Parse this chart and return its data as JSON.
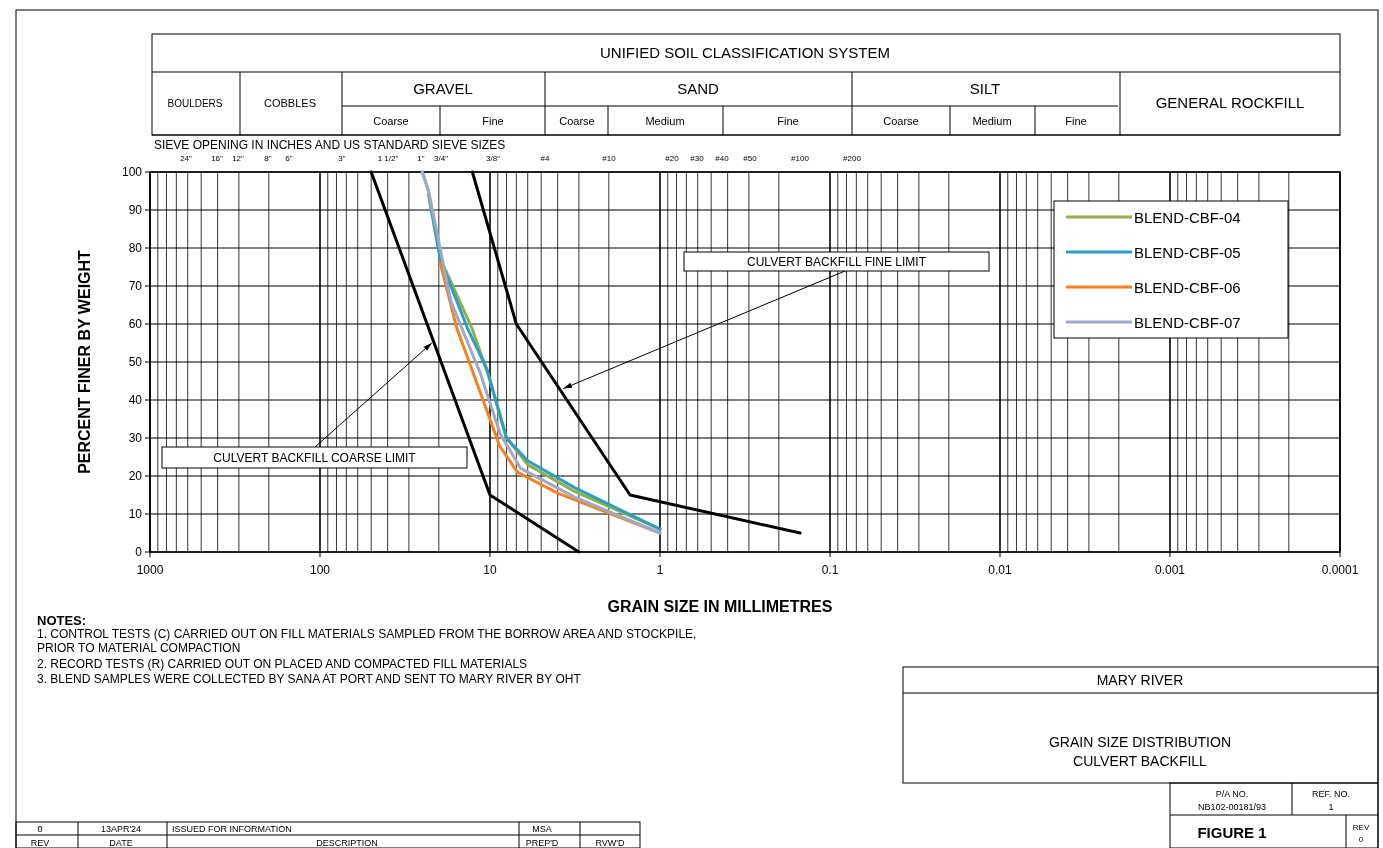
{
  "chart_data": {
    "type": "line",
    "xlabel": "GRAIN SIZE IN MILLIMETRES",
    "ylabel": "PERCENT FINER BY WEIGHT",
    "log": "x",
    "grid": true,
    "legend": "top right",
    "marker": "none",
    "line_style": "solid",
    "xlim": [
      1000,
      0.0001
    ],
    "xticks": [
      1000,
      100,
      10,
      1,
      0.1,
      0.01,
      0.001,
      0.0001
    ],
    "ylim": [
      0,
      100
    ],
    "yticks": [
      0,
      10,
      20,
      30,
      40,
      50,
      60,
      70,
      80,
      90,
      100
    ],
    "series": [
      {
        "color": "#000000",
        "x": [
          50,
          10,
          3
        ],
        "values": [
          100,
          15,
          0
        ]
      },
      {
        "color": "#000000",
        "x": [
          12.7,
          7,
          1.5,
          0.15
        ],
        "values": [
          100,
          60,
          15,
          5
        ]
      },
      {
        "name": "BLEND-CBF-04",
        "color": "#8db04a",
        "x": [
          25,
          23,
          19.5,
          12.8,
          10.3,
          8,
          6,
          3.2,
          1
        ],
        "values": [
          100,
          95,
          77,
          59,
          47,
          30,
          23,
          16,
          6
        ]
      },
      {
        "name": "BLEND-CBF-05",
        "color": "#2e9fc4",
        "x": [
          23,
          19.6,
          13.6,
          10.4,
          8,
          6,
          3.2,
          1
        ],
        "values": [
          94,
          77,
          59,
          48,
          30,
          24,
          17,
          6
        ]
      },
      {
        "name": "BLEND-CBF-06",
        "color": "#f58220",
        "x": [
          19.6,
          15.7,
          11.4,
          8.8,
          6.9,
          4,
          1
        ],
        "values": [
          76,
          59,
          42,
          28,
          21,
          15.5,
          5
        ]
      },
      {
        "name": "BLEND-CBF-07",
        "color": "#a0a8c8",
        "x": [
          25,
          23,
          17,
          11.4,
          8.7,
          6.6,
          3.2,
          1
        ],
        "values": [
          100,
          95,
          66,
          47,
          31,
          22,
          14.5,
          5
        ]
      }
    ],
    "annotations": [
      {
        "text": "CULVERT BACKFILL COARSE LIMIT",
        "x": 22,
        "y": 55
      },
      {
        "text": "CULVERT BACKFILL FINE LIMIT",
        "x": 3.7,
        "y": 43
      },
      "UNIFIED SOIL CLASSIFICATION SYSTEM",
      "BOULDERS",
      "COBBLES",
      "GRAVEL",
      "SAND",
      "SILT",
      "GENERAL ROCKFILL",
      "Coarse",
      "Fine",
      "Coarse",
      "Medium",
      "Fine",
      "Coarse",
      "Medium",
      "Fine",
      "NOTES:",
      "1. CONTROL TESTS (C) CARRIED OUT ON FILL MATERIALS  SAMPLED FROM THE BORROW AREA AND STOCKPILE,",
      "PRIOR TO MATERIAL COMPACTION",
      "2. RECORD TESTS (R) CARRIED OUT ON PLACED AND COMPACTED FILL MATERIALS",
      "3. BLEND SAMPLES WERE COLLECTED BY SANA AT PORT AND SENT TO MARY RIVER BY OHT",
      "MARY RIVER",
      "GRAIN SIZE DISTRIBUTION",
      "CULVERT BACKFILL",
      "P/A NO.",
      "NB102-00181/93",
      "REF. NO.",
      "1",
      "FIGURE 1",
      "REV",
      "0",
      "0",
      "13APR'24",
      "ISSUED FOR INFORMATION",
      "MSA",
      "REV",
      "DATE",
      "DESCRIPTION",
      "PREP'D",
      "RVW'D",
      "SIEVE OPENING IN INCHES AND US STANDARD SIEVE SIZES",
      "24\"",
      "16\"",
      "12\"",
      "8\"",
      "6\"",
      "3\"",
      "1 1/2\"",
      "1\"",
      "3/4\"",
      "3/8\"",
      "#4",
      "#10",
      "#20",
      "#30",
      "#40",
      "#50",
      "#100",
      "#200"
    ]
  }
}
